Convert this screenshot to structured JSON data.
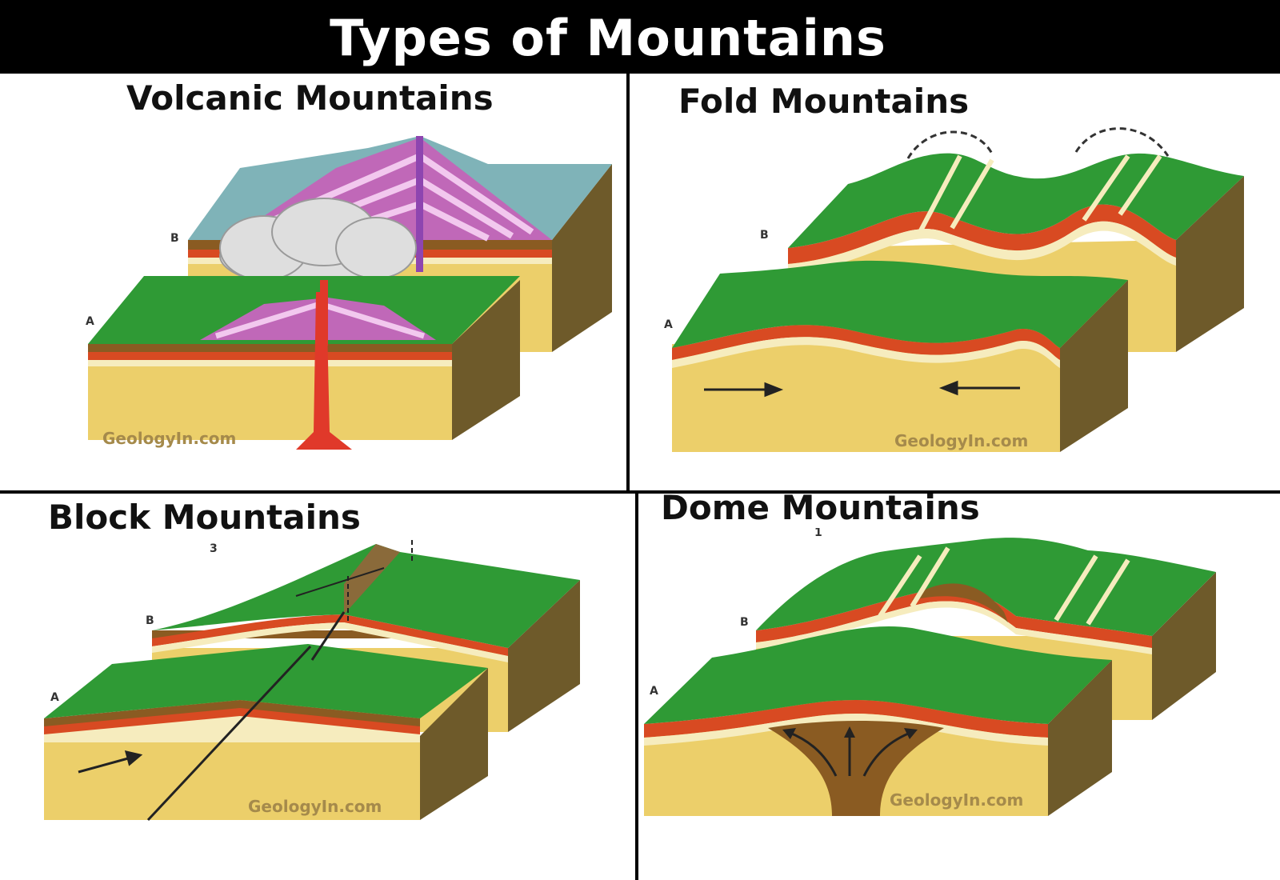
{
  "title": "Types of Mountains",
  "panels": {
    "volcanic": {
      "title": "Volcanic Mountains",
      "label_a": "A",
      "label_b": "B",
      "watermark": "GeologyIn.com"
    },
    "fold": {
      "title": "Fold Mountains",
      "label_a": "A",
      "label_b": "B",
      "watermark": "GeologyIn.com"
    },
    "block": {
      "title": "Block Mountains",
      "label_a": "A",
      "label_b": "B",
      "label_num": "3",
      "watermark": "GeologyIn.com"
    },
    "dome": {
      "title": "Dome Mountains",
      "label_a": "A",
      "label_b": "B",
      "label_num": "1",
      "watermark": "GeologyIn.com"
    }
  },
  "colors": {
    "grass": "#2f9a35",
    "sand": "#eccf6a",
    "red_layer": "#d84a22",
    "brown_layer": "#8a5b22",
    "cream_layer": "#f6ecbe",
    "side_dark": "#6e5a2a",
    "magma": "#e0392a",
    "ash": "#d8d8d8",
    "volcano_stripe": "#b24fa8",
    "banner_bg": "#000000"
  }
}
